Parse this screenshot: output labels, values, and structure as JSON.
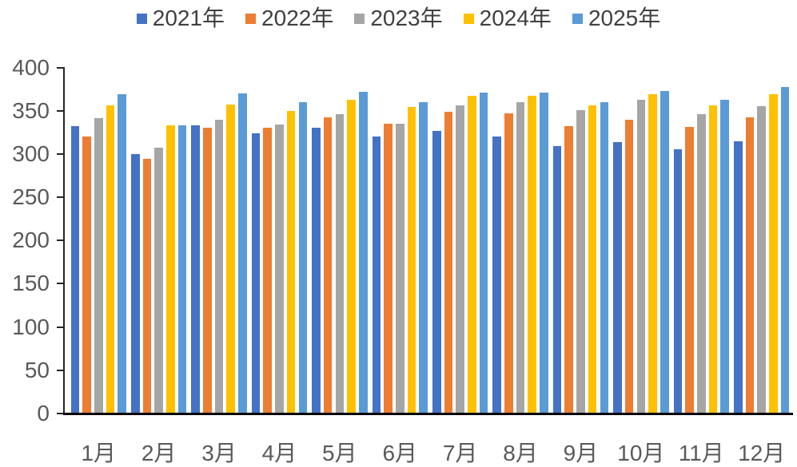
{
  "chart_data": {
    "type": "bar",
    "title": "",
    "xlabel": "",
    "ylabel": "",
    "categories": [
      "1月",
      "2月",
      "3月",
      "4月",
      "5月",
      "6月",
      "7月",
      "8月",
      "9月",
      "10月",
      "11月",
      "12月"
    ],
    "series": [
      {
        "name": "2021年",
        "color": "#4472C4",
        "values": [
          332,
          300,
          333,
          324,
          330,
          320,
          327,
          320,
          309,
          314,
          305,
          315
        ]
      },
      {
        "name": "2022年",
        "color": "#ED7D31",
        "values": [
          320,
          294,
          330,
          330,
          342,
          335,
          349,
          347,
          332,
          340,
          331,
          342
        ]
      },
      {
        "name": "2023年",
        "color": "#A5A5A5",
        "values": [
          341,
          307,
          340,
          334,
          346,
          335,
          356,
          360,
          351,
          363,
          346,
          355
        ]
      },
      {
        "name": "2024年",
        "color": "#FFC000",
        "values": [
          356,
          333,
          357,
          350,
          363,
          354,
          367,
          367,
          356,
          369,
          356,
          369
        ]
      },
      {
        "name": "2025年",
        "color": "#5B9BD5",
        "values": [
          369,
          333,
          370,
          360,
          372,
          360,
          371,
          371,
          360,
          373,
          363,
          377
        ]
      }
    ],
    "ylim": [
      0,
      400
    ],
    "yticks": [
      0,
      50,
      100,
      150,
      200,
      250,
      300,
      350,
      400
    ],
    "grid": false,
    "legend_position": "top"
  },
  "colors": {
    "background": "#FFFFFF",
    "axis_line": "#262626",
    "baseline": "#000000",
    "tick_label": "#595959",
    "legend_text": "#404040"
  }
}
